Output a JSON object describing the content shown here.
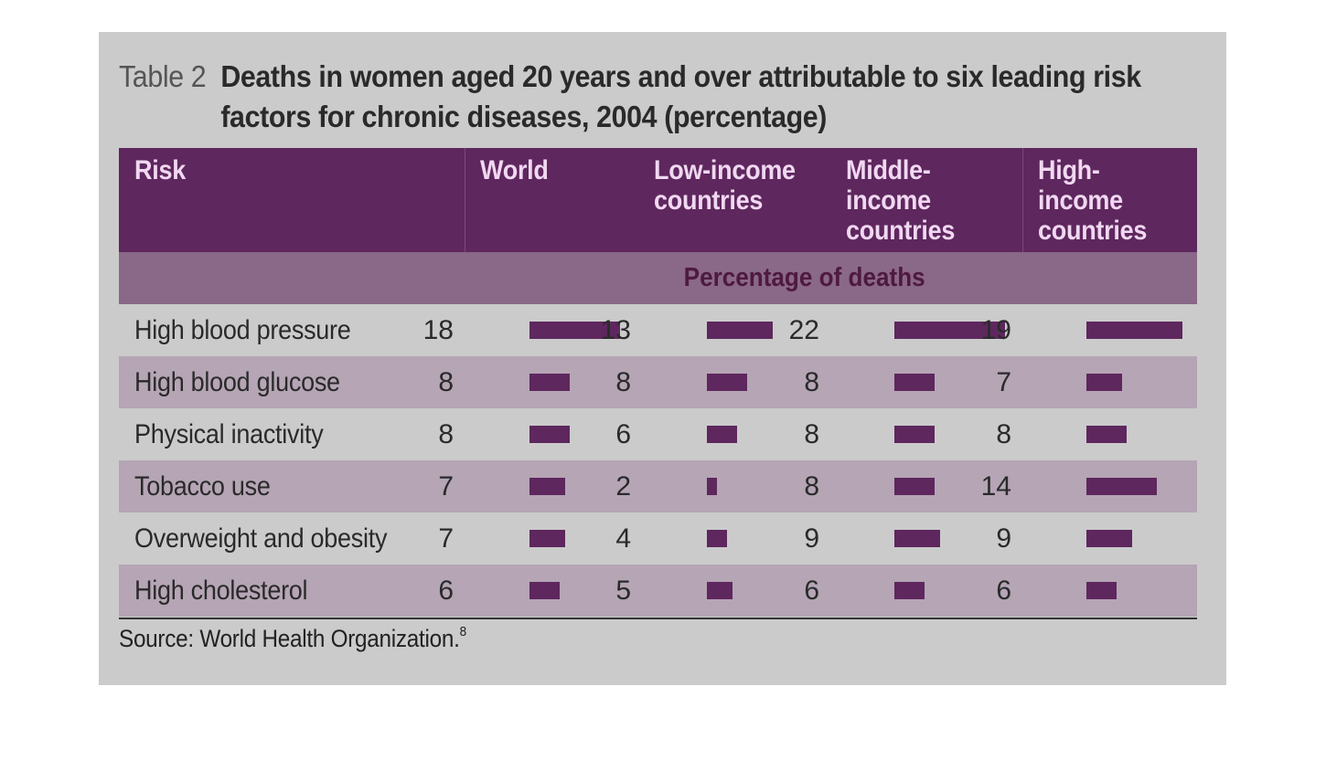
{
  "table": {
    "label": "Table 2",
    "title": "Deaths in women aged 20 years and over attributable to six leading risk factors for chronic diseases, 2004 (percentage)",
    "columns": [
      "Risk",
      "World",
      "Low-income countries",
      "Middle-income countries",
      "High-income countries"
    ],
    "subheader": "Percentage of deaths",
    "source": "Source: World Health Organization.",
    "source_note": "8"
  },
  "colors": {
    "bar": "#5e275e",
    "header": "#5e275e",
    "subheader": "#8a6888"
  },
  "chart_data": {
    "type": "table",
    "title": "Deaths in women aged 20 years and over attributable to six leading risk factors for chronic diseases, 2004 (percentage)",
    "categories": [
      "High blood pressure",
      "High blood glucose",
      "Physical inactivity",
      "Tobacco use",
      "Overweight and obesity",
      "High cholesterol"
    ],
    "series": [
      {
        "name": "World",
        "values": [
          18,
          8,
          8,
          7,
          7,
          6
        ]
      },
      {
        "name": "Low-income countries",
        "values": [
          13,
          8,
          6,
          2,
          4,
          5
        ]
      },
      {
        "name": "Middle-income countries",
        "values": [
          22,
          8,
          8,
          8,
          9,
          6
        ]
      },
      {
        "name": "High-income countries",
        "values": [
          19,
          7,
          8,
          14,
          9,
          6
        ]
      }
    ]
  }
}
